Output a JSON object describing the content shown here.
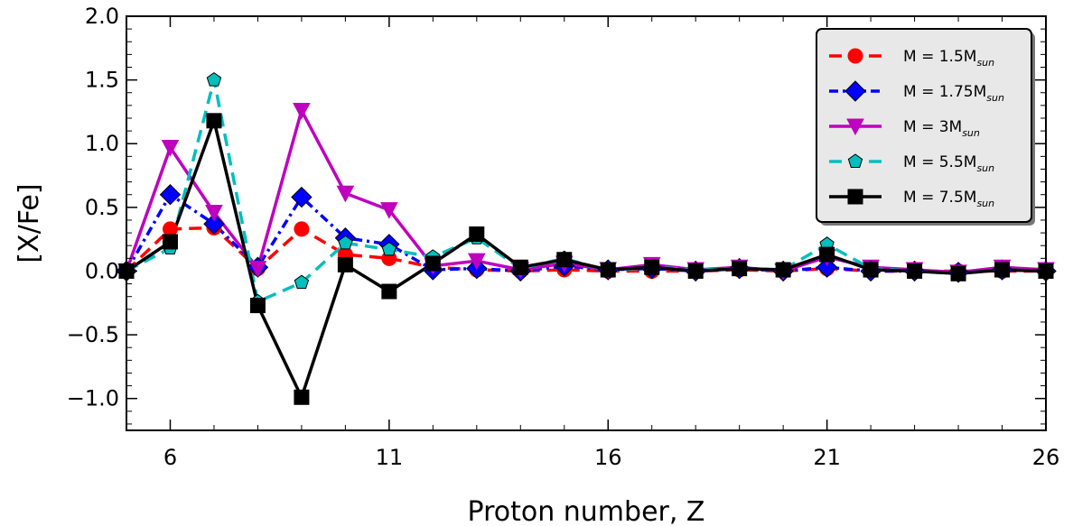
{
  "chart_data": {
    "type": "line",
    "xlabel": "Proton number, Z",
    "ylabel": "[X/Fe]",
    "xlim": [
      5,
      26
    ],
    "ylim": [
      -1.25,
      2.0
    ],
    "xticks": [
      6,
      11,
      16,
      21,
      26
    ],
    "yticks": [
      -1.0,
      -0.5,
      0.0,
      0.5,
      1.0,
      1.5,
      2.0
    ],
    "ytick_labels": [
      "−1.0",
      "−0.5",
      "0.0",
      "0.5",
      "1.0",
      "1.5",
      "2.0"
    ],
    "grid": false,
    "legend_position": "top-right",
    "x": [
      5,
      6,
      7,
      8,
      9,
      10,
      11,
      12,
      13,
      14,
      15,
      16,
      17,
      18,
      19,
      20,
      21,
      22,
      23,
      24,
      25,
      26
    ],
    "series": [
      {
        "name": "M = 1.5M",
        "name_sub": "sun",
        "color": "#ff0000",
        "linestyle": "dashed",
        "marker": "circle",
        "values": [
          0.0,
          0.33,
          0.34,
          0.02,
          0.33,
          0.13,
          0.1,
          0.03,
          0.01,
          0.0,
          0.01,
          0.0,
          0.0,
          0.0,
          0.01,
          0.0,
          0.02,
          0.0,
          0.0,
          0.0,
          0.0,
          0.0
        ]
      },
      {
        "name": "M = 1.75M",
        "name_sub": "sun",
        "color": "#0000ff",
        "linestyle": "dashdot",
        "marker": "diamond",
        "values": [
          0.0,
          0.6,
          0.37,
          0.03,
          0.58,
          0.26,
          0.21,
          0.01,
          0.02,
          0.0,
          0.04,
          0.01,
          0.02,
          0.0,
          0.02,
          0.0,
          0.03,
          0.0,
          0.0,
          -0.01,
          0.01,
          0.0
        ]
      },
      {
        "name": "M = 3M",
        "name_sub": "sun",
        "color": "#bf00bf",
        "linestyle": "solid",
        "marker": "triangle-down",
        "values": [
          0.0,
          0.97,
          0.46,
          0.02,
          1.26,
          0.61,
          0.48,
          0.04,
          0.08,
          0.01,
          0.06,
          0.01,
          0.05,
          0.01,
          0.03,
          0.0,
          0.11,
          0.03,
          0.01,
          -0.01,
          0.03,
          0.01
        ]
      },
      {
        "name": "M = 5.5M",
        "name_sub": "sun",
        "color": "#00bfbf",
        "linestyle": "dashed",
        "marker": "pentagon",
        "values": [
          0.0,
          0.18,
          1.5,
          -0.24,
          -0.09,
          0.22,
          0.17,
          0.11,
          0.26,
          0.02,
          0.1,
          0.0,
          0.03,
          0.01,
          0.02,
          0.01,
          0.21,
          0.02,
          0.0,
          -0.02,
          0.01,
          0.0
        ]
      },
      {
        "name": "M = 7.5M",
        "name_sub": "sun",
        "color": "#000000",
        "linestyle": "solid",
        "marker": "square",
        "values": [
          0.0,
          0.23,
          1.18,
          -0.27,
          -0.99,
          0.05,
          -0.16,
          0.06,
          0.29,
          0.03,
          0.09,
          0.01,
          0.03,
          0.0,
          0.02,
          0.01,
          0.13,
          0.01,
          0.0,
          -0.02,
          0.01,
          0.0
        ]
      }
    ]
  }
}
